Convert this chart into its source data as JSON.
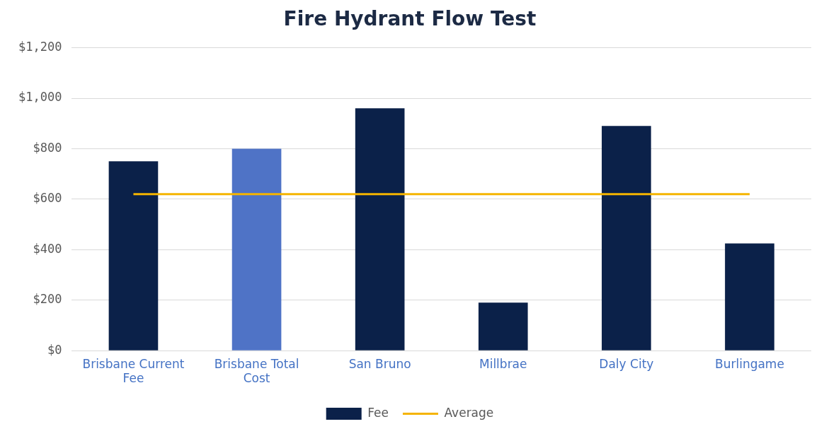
{
  "chart_data": {
    "type": "bar",
    "title": "Fire Hydrant Flow Test",
    "categories": [
      "Brisbane Current Fee",
      "Brisbane Total Cost",
      "San Bruno",
      "Millbrae",
      "Daly City",
      "Burlingame"
    ],
    "series": [
      {
        "name": "Fee",
        "color": "#0b2149",
        "colors": [
          "#0b2149",
          "#4f73c6",
          "#0b2149",
          "#0b2149",
          "#0b2149",
          "#0b2149"
        ],
        "values": [
          750,
          800,
          960,
          190,
          890,
          425
        ]
      },
      {
        "name": "Average",
        "type": "line",
        "color": "#f5b400",
        "values": [
          620,
          620,
          620,
          620,
          620,
          620
        ]
      }
    ],
    "ylim": [
      0,
      1200
    ],
    "yticks": [
      {
        "value": 0,
        "label": "$0"
      },
      {
        "value": 200,
        "label": "$200"
      },
      {
        "value": 400,
        "label": "$400"
      },
      {
        "value": 600,
        "label": "$600"
      },
      {
        "value": 800,
        "label": "$800"
      },
      {
        "value": 1000,
        "label": "$1,000"
      },
      {
        "value": 1200,
        "label": "$1,200"
      }
    ],
    "grid": "y",
    "legend": "bottom",
    "marker": "none"
  }
}
